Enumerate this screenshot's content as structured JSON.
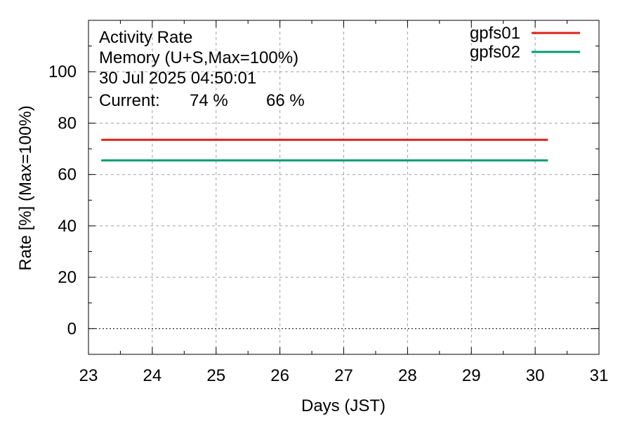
{
  "chart_data": {
    "type": "line",
    "title_lines": [
      "Activity Rate",
      "Memory (U+S,Max=100%)",
      "30 Jul 2025 04:50:01"
    ],
    "current_label": "Current:",
    "xlabel": "Days (JST)",
    "ylabel": "Rate [%]  (Max=100%)",
    "xlim": [
      23,
      31
    ],
    "ylim": [
      -10,
      120
    ],
    "x_ticks": [
      "23",
      "24",
      "25",
      "26",
      "27",
      "28",
      "29",
      "30",
      "31"
    ],
    "y_ticks": [
      "0",
      "20",
      "40",
      "60",
      "80",
      "100"
    ],
    "grid": true,
    "legend_position": "top-right",
    "series": [
      {
        "name": "gpfs01",
        "color": "#dd2218",
        "current": "74 %",
        "x": [
          23.2,
          30.2
        ],
        "y": [
          73.5,
          73.5
        ]
      },
      {
        "name": "gpfs02",
        "color": "#009e73",
        "current": "66 %",
        "x": [
          23.2,
          30.2
        ],
        "y": [
          65.5,
          65.5
        ]
      }
    ]
  }
}
